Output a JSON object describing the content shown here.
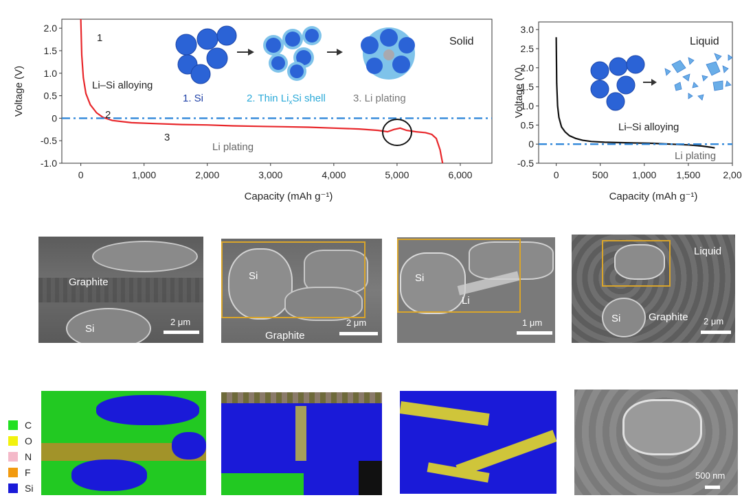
{
  "chart_data": [
    {
      "type": "line",
      "panel": "solid",
      "xlabel": "Capacity (mAh g⁻¹)",
      "ylabel": "Voltage (V)",
      "xlim": [
        -300,
        6500
      ],
      "ylim": [
        -1.0,
        2.2
      ],
      "xticks": [
        "0",
        "1,000",
        "2,000",
        "3,000",
        "4,000",
        "5,000",
        "6,000"
      ],
      "yticks": [
        "2.0",
        "1.5",
        "1.0",
        "0.5",
        "0",
        "-0.5",
        "-1.0"
      ],
      "series": [
        {
          "color": "#e8262a",
          "x": [
            0,
            15,
            40,
            80,
            150,
            250,
            350,
            500,
            800,
            1200,
            1600,
            2000,
            2400,
            2800,
            3200,
            3600,
            4000,
            4400,
            4700,
            4850,
            4950,
            5050,
            5150,
            5300,
            5450,
            5550,
            5620,
            5680,
            5720
          ],
          "y": [
            2.2,
            1.4,
            0.9,
            0.55,
            0.3,
            0.12,
            0.02,
            -0.05,
            -0.1,
            -0.12,
            -0.14,
            -0.15,
            -0.17,
            -0.18,
            -0.19,
            -0.2,
            -0.22,
            -0.24,
            -0.27,
            -0.3,
            -0.25,
            -0.22,
            -0.27,
            -0.3,
            -0.32,
            -0.36,
            -0.45,
            -0.7,
            -1.0
          ]
        },
        {
          "style": "dash-dot",
          "color": "#2f86d9",
          "x": [
            -300,
            6500
          ],
          "y": [
            0,
            0
          ]
        }
      ],
      "annotations": [
        "1",
        "2",
        "3",
        "Li–Si alloying",
        "Li plating",
        "Solid"
      ],
      "schematic_labels": [
        "1. Si",
        "2. Thin Li",
        "x",
        "Si shell",
        "3. Li plating"
      ]
    },
    {
      "type": "line",
      "panel": "liquid",
      "xlabel": "Capacity (mAh g⁻¹)",
      "ylabel": "Voltage (V)",
      "xlim": [
        -200,
        2000
      ],
      "ylim": [
        -0.5,
        3.2
      ],
      "xticks": [
        "0",
        "500",
        "1,000",
        "1,500",
        "2,00"
      ],
      "yticks": [
        "3.0",
        "2.5",
        "2.0",
        "1.5",
        "1.0",
        "0.5",
        "0",
        "-0.5"
      ],
      "series": [
        {
          "color": "#111111",
          "x": [
            0,
            5,
            15,
            30,
            60,
            100,
            150,
            220,
            300,
            400,
            550,
            700,
            900,
            1100,
            1300,
            1500,
            1650,
            1750,
            1800
          ],
          "y": [
            2.8,
            1.6,
            1.0,
            0.7,
            0.45,
            0.32,
            0.22,
            0.15,
            0.1,
            0.07,
            0.05,
            0.04,
            0.03,
            0.02,
            0.0,
            -0.02,
            -0.05,
            -0.08,
            -0.1
          ]
        },
        {
          "style": "dash-dot",
          "color": "#2f86d9",
          "x": [
            -200,
            2000
          ],
          "y": [
            0,
            0
          ]
        }
      ],
      "annotations": [
        "Liquid",
        "Li–Si alloying",
        "Li plating"
      ]
    }
  ],
  "sem_images": [
    {
      "labels": [
        "Graphite",
        "Si"
      ],
      "scalebar": "2 μm"
    },
    {
      "labels": [
        "Si",
        "Graphite"
      ],
      "scalebar": "2 μm"
    },
    {
      "labels": [
        "Si",
        "Li"
      ],
      "scalebar": "1 μm"
    },
    {
      "labels": [
        "Liquid",
        "Si",
        "Graphite"
      ],
      "scalebar": "2 μm"
    }
  ],
  "eds_legend": [
    {
      "label": "C",
      "color": "#22e022"
    },
    {
      "label": "O",
      "color": "#f2f20e"
    },
    {
      "label": "N",
      "color": "#f4b9c9"
    },
    {
      "label": "F",
      "color": "#f29a0e"
    },
    {
      "label": "Si",
      "color": "#1a1ad8"
    }
  ],
  "zoom_scalebar": "500 nm",
  "colors": {
    "sem_gray": "#7a7a7a",
    "roi_box": "#d9a52b",
    "red_curve": "#e8262a",
    "blue_dash": "#2f86d9"
  }
}
